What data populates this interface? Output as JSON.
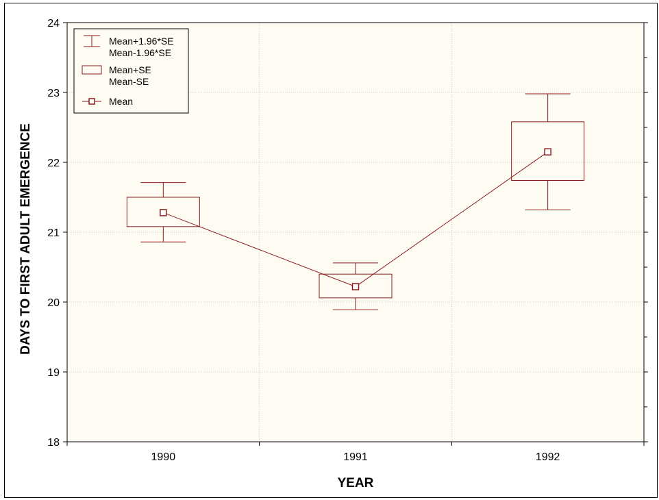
{
  "colors": {
    "series": "#8b1a1a",
    "plot_background": "#fefcf2",
    "grid": "#c8c8c8",
    "axis": "#000000"
  },
  "chart_data": {
    "type": "box",
    "xlabel": "YEAR",
    "ylabel": "DAYS TO FIRST ADULT EMERGENCE",
    "categories": [
      "1990",
      "1991",
      "1992"
    ],
    "ylim": [
      18,
      24
    ],
    "yticks": [
      18,
      19,
      20,
      21,
      22,
      23,
      24
    ],
    "grid": true,
    "legend_position": "top-left",
    "series": [
      {
        "stat": "Mean",
        "values": [
          21.28,
          20.22,
          22.15
        ]
      },
      {
        "stat": "Mean+SE / Mean-SE",
        "upper": [
          21.5,
          20.4,
          22.58
        ],
        "lower": [
          21.08,
          20.06,
          21.74
        ]
      },
      {
        "stat": "Mean+1.96*SE / Mean-1.96*SE",
        "upper": [
          21.71,
          20.56,
          22.98
        ],
        "lower": [
          20.86,
          19.89,
          21.32
        ]
      }
    ],
    "legend": [
      {
        "symbol": "whisker",
        "lines": [
          "Mean+1.96*SE",
          "Mean-1.96*SE"
        ]
      },
      {
        "symbol": "box",
        "lines": [
          "Mean+SE",
          "Mean-SE"
        ]
      },
      {
        "symbol": "marker-line",
        "lines": [
          "Mean"
        ]
      }
    ]
  }
}
